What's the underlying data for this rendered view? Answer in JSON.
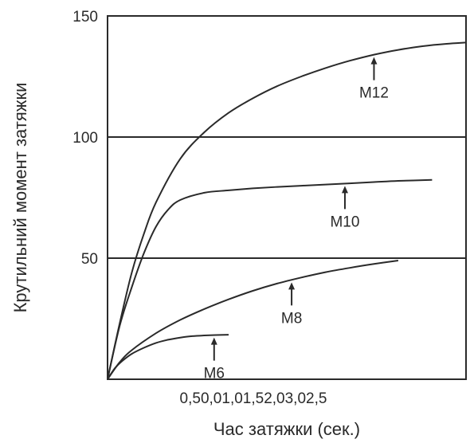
{
  "chart_data": {
    "type": "line",
    "title": "",
    "xlabel": "Час затяжки (сек.)",
    "ylabel": "Крутильний момент затяжки",
    "x_tick_text": "0,50,01,01,52,03,02,5",
    "y_ticks": [
      50,
      100,
      150
    ],
    "ylim": [
      0,
      150
    ],
    "xlim": [
      0,
      7.4
    ],
    "grid": "horizontal lines at 50 and 100",
    "colors": {
      "line": "#2a2a2a",
      "grid": "#2a2a2a"
    },
    "series": [
      {
        "name": "M12",
        "x": [
          0,
          0.25,
          0.5,
          0.75,
          1.0,
          1.5,
          2.0,
          2.5,
          3.0,
          3.5,
          4.0,
          4.5,
          5.0,
          5.5,
          6.0,
          6.5,
          7.0,
          7.4
        ],
        "y": [
          0,
          23,
          44,
          60,
          73,
          91,
          102,
          110,
          116,
          121,
          125,
          128.5,
          131.5,
          134,
          136,
          137.5,
          138.5,
          139
        ]
      },
      {
        "name": "M10",
        "x": [
          0,
          0.25,
          0.5,
          0.75,
          1.0,
          1.25,
          1.5,
          2.0,
          2.5,
          3.0,
          3.5,
          4.0,
          4.5,
          5.0,
          5.5,
          6.0,
          6.7
        ],
        "y": [
          0,
          22,
          38,
          52,
          63,
          70,
          74,
          77,
          78,
          78.8,
          79.4,
          79.9,
          80.4,
          80.9,
          81.4,
          81.9,
          82.3
        ]
      },
      {
        "name": "M8",
        "x": [
          0,
          0.25,
          0.5,
          1.0,
          1.5,
          2.0,
          2.5,
          3.0,
          3.5,
          4.0,
          4.5,
          5.0,
          5.5,
          6.0
        ],
        "y": [
          0,
          7,
          12,
          19,
          24.5,
          29,
          33,
          36.5,
          39.5,
          42,
          44.2,
          46,
          47.6,
          49
        ]
      },
      {
        "name": "M6",
        "x": [
          0,
          0.15,
          0.3,
          0.5,
          0.75,
          1.0,
          1.25,
          1.5,
          1.75,
          2.0,
          2.5
        ],
        "y": [
          0,
          4.5,
          7.5,
          10.5,
          13,
          15,
          16.3,
          17.2,
          17.8,
          18.1,
          18.4
        ]
      }
    ],
    "annotations": [
      {
        "label": "M12",
        "series": "M12",
        "at_x": 5.5
      },
      {
        "label": "M10",
        "series": "M10",
        "at_x": 4.9
      },
      {
        "label": "M8",
        "series": "M8",
        "at_x": 3.8
      },
      {
        "label": "M6",
        "series": "M6",
        "at_x": 2.2
      }
    ]
  }
}
